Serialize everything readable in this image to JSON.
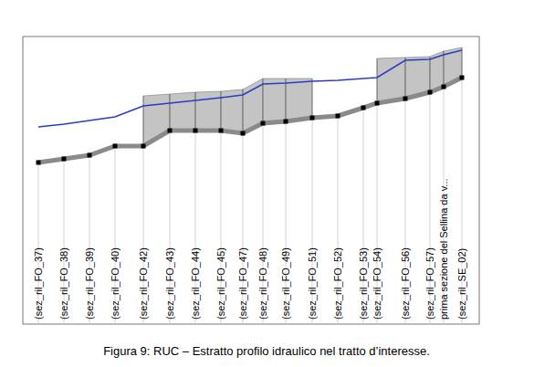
{
  "chart_data": {
    "type": "line",
    "title": "Figura 9: RUC – Estratto profilo idraulico nel tratto d’interesse.",
    "x": [
      17,
      45,
      73,
      101,
      132,
      161,
      189,
      217,
      241,
      263,
      288,
      317,
      345,
      373,
      388,
      419,
      446,
      461,
      481
    ],
    "xlim": [
      0,
      500
    ],
    "ylim": [
      0,
      200
    ],
    "xticks": [
      {
        "value": 17,
        "label": "(sez_ril_FO_37)"
      },
      {
        "value": 45,
        "label": "(sez_ril_FO_38)"
      },
      {
        "value": 73,
        "label": "(sez_ril_FO_39)"
      },
      {
        "value": 101,
        "label": "(sez_ril_FO_40)"
      },
      {
        "value": 132,
        "label": "(sez_ril_FO_42)"
      },
      {
        "value": 161,
        "label": "(sez_ril_FO_43)"
      },
      {
        "value": 189,
        "label": "(sez_ril_FO_44)"
      },
      {
        "value": 217,
        "label": "(sez_ril_FO_45)"
      },
      {
        "value": 241,
        "label": "(sez_ril_FO_47)"
      },
      {
        "value": 263,
        "label": "(sez_ril_FO_48)"
      },
      {
        "value": 288,
        "label": "(sez_ril_FO_49)"
      },
      {
        "value": 317,
        "label": "(sez_ril_FO_51)"
      },
      {
        "value": 345,
        "label": "(sez_ril_FO_52)"
      },
      {
        "value": 373,
        "label": "(sez_ril_FO_53)"
      },
      {
        "value": 388,
        "label": "(sez_ril_FO_54)"
      },
      {
        "value": 419,
        "label": "(sez_ril_FO_56)"
      },
      {
        "value": 446,
        "label": "(sez_ril_FO_57)"
      },
      {
        "value": 461,
        "label": "prima sezione del Sellina da v..."
      },
      {
        "value": 481,
        "label": "(sez_ril_SE_02)"
      }
    ],
    "tick_labels": "x",
    "grid": true,
    "series": [
      {
        "type": "line",
        "color": "#8a8a8a",
        "marker": "square",
        "line_style": "solid",
        "values": [
          62,
          66,
          70,
          80,
          80,
          97,
          97,
          97,
          94,
          105,
          107,
          111,
          113,
          122,
          127,
          132,
          139,
          145,
          155
        ]
      },
      {
        "type": "line",
        "color": "#2a3cc4",
        "line_style": "solid",
        "values": [
          101,
          104,
          108,
          112,
          124,
          127,
          130,
          133,
          136,
          148,
          149,
          151,
          152,
          154,
          155,
          174,
          175,
          180,
          185
        ]
      },
      {
        "type": "area",
        "color": "#c4c4c4",
        "values": [
          null,
          null,
          null,
          null,
          135,
          137,
          139,
          140,
          142,
          154,
          154,
          154,
          null,
          null,
          176,
          177,
          178,
          184,
          188
        ]
      }
    ]
  }
}
